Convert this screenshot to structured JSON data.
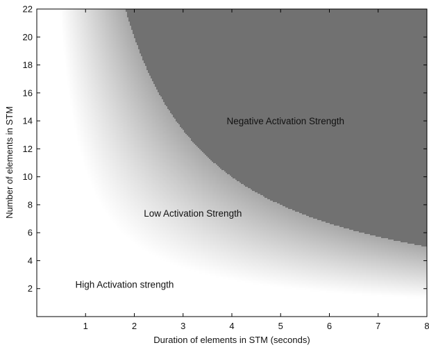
{
  "chart_data": {
    "type": "heatmap",
    "title": "",
    "xlabel": "Duration of elements in STM (seconds)",
    "ylabel": "Number of elements in STM",
    "xlim": [
      0,
      8
    ],
    "ylim": [
      0,
      22
    ],
    "x_ticks": [
      1,
      2,
      3,
      4,
      5,
      6,
      7,
      8
    ],
    "x_tick_labels": [
      "1",
      "2",
      "3",
      "4",
      "5",
      "6",
      "7",
      "8"
    ],
    "y_ticks": [
      2,
      4,
      6,
      8,
      10,
      12,
      14,
      16,
      18,
      20,
      22
    ],
    "y_tick_labels": [
      "2",
      "4",
      "6",
      "8",
      "10",
      "12",
      "14",
      "16",
      "18",
      "20",
      "22"
    ],
    "grid": false,
    "legend": "none",
    "colors": {
      "high": "#ffffff",
      "gradient_end": "#a8a8a8",
      "negative": "#717171",
      "frame": "#000000"
    },
    "regions": [
      {
        "label": "High Activation strength",
        "x": 1.8,
        "y": 2.3
      },
      {
        "label": "Low Activation Strength",
        "x": 3.2,
        "y": 7.4
      },
      {
        "label": "Negative Activation Strength",
        "x": 5.1,
        "y": 14.0
      }
    ],
    "boundaries": [
      {
        "name": "gradient_start",
        "x": [
          1,
          2,
          4,
          8
        ],
        "y": [
          10.7,
          5.3,
          2.7,
          1.3
        ]
      },
      {
        "name": "negative_start",
        "x": [
          1.45,
          2,
          4,
          8
        ],
        "y": [
          22,
          20.0,
          10.0,
          5.0
        ]
      }
    ]
  }
}
